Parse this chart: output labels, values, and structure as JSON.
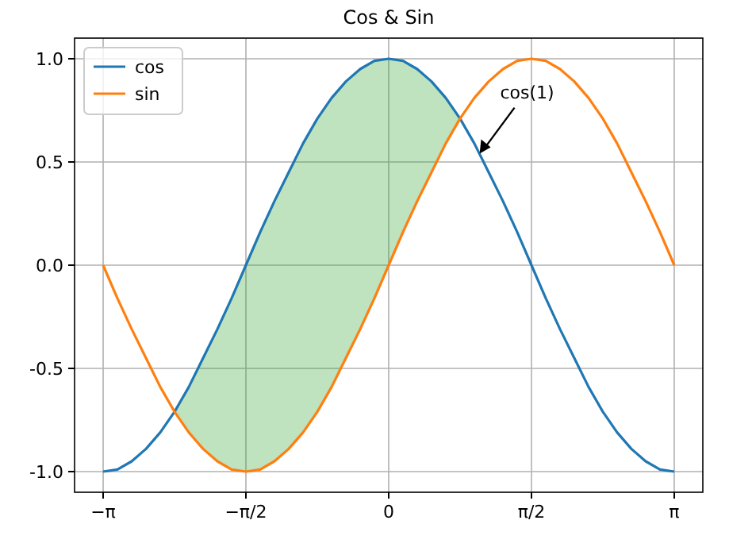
{
  "chart_data": {
    "type": "line",
    "title": "Cos & Sin",
    "x": [
      -3.142,
      -2.985,
      -2.827,
      -2.67,
      -2.513,
      -2.356,
      -2.199,
      -2.042,
      -1.885,
      -1.728,
      -1.571,
      -1.414,
      -1.257,
      -1.1,
      -0.942,
      -0.785,
      -0.628,
      -0.471,
      -0.314,
      -0.157,
      0,
      0.157,
      0.314,
      0.471,
      0.628,
      0.785,
      0.942,
      1.1,
      1.257,
      1.414,
      1.571,
      1.728,
      1.885,
      2.042,
      2.199,
      2.356,
      2.513,
      2.67,
      2.827,
      2.985,
      3.142
    ],
    "series": [
      {
        "name": "cos",
        "color": "#1f77b4",
        "values": [
          -1,
          -0.99,
          -0.95,
          -0.89,
          -0.81,
          -0.71,
          -0.59,
          -0.45,
          -0.31,
          -0.16,
          0,
          0.16,
          0.31,
          0.45,
          0.59,
          0.71,
          0.81,
          0.89,
          0.95,
          0.99,
          1,
          0.99,
          0.95,
          0.89,
          0.81,
          0.71,
          0.59,
          0.45,
          0.31,
          0.16,
          0,
          -0.16,
          -0.31,
          -0.45,
          -0.59,
          -0.71,
          -0.81,
          -0.89,
          -0.95,
          -0.99,
          -1
        ],
        "upper": [
          null,
          null,
          null,
          null,
          null,
          -0.71,
          -0.59,
          -0.45,
          -0.31,
          -0.16,
          0,
          0.16,
          0.31,
          0.45,
          0.59,
          0.71,
          0.81,
          0.89,
          0.95,
          0.99,
          1,
          0.99,
          0.95,
          0.89,
          0.81,
          0.71,
          null,
          null,
          null,
          null,
          null,
          null,
          null,
          null,
          null,
          null,
          null,
          null,
          null,
          null,
          null
        ],
        "lower": [
          null,
          null,
          null,
          null,
          null,
          -0.71,
          -0.81,
          -0.89,
          -0.95,
          -0.99,
          -1,
          -0.99,
          -0.95,
          -0.89,
          -0.81,
          -0.71,
          -0.59,
          -0.45,
          -0.31,
          -0.16,
          0,
          0.16,
          0.31,
          0.45,
          0.59,
          0.71,
          null,
          null,
          null,
          null,
          null,
          null,
          null,
          null,
          null,
          null,
          null,
          null,
          null,
          null,
          null
        ]
      },
      {
        "name": "sin",
        "color": "#ff7f0e",
        "values": [
          0,
          -0.16,
          -0.31,
          -0.45,
          -0.59,
          -0.71,
          -0.81,
          -0.89,
          -0.95,
          -0.99,
          -1,
          -0.99,
          -0.95,
          -0.89,
          -0.81,
          -0.71,
          -0.59,
          -0.45,
          -0.31,
          -0.16,
          0,
          0.16,
          0.31,
          0.45,
          0.59,
          0.71,
          0.81,
          0.89,
          0.95,
          0.99,
          1,
          0.99,
          0.95,
          0.89,
          0.81,
          0.71,
          0.59,
          0.45,
          0.31,
          0.16,
          0
        ]
      }
    ],
    "xlim": [
      -3.456,
      3.456
    ],
    "ylim": [
      -1.1,
      1.1
    ],
    "xticks": [
      {
        "value": -3.1416,
        "label": "−π"
      },
      {
        "value": -1.5708,
        "label": "−π/2"
      },
      {
        "value": 0,
        "label": "0"
      },
      {
        "value": 1.5708,
        "label": "π/2"
      },
      {
        "value": 3.1416,
        "label": "π"
      }
    ],
    "yticks": [
      {
        "value": -1,
        "label": "-1.0"
      },
      {
        "value": -0.5,
        "label": "-0.5"
      },
      {
        "value": 0,
        "label": "0.0"
      },
      {
        "value": 0.5,
        "label": "0.5"
      },
      {
        "value": 1,
        "label": "1.0"
      }
    ],
    "annotations": [
      {
        "text": "cos(1)",
        "x": 1,
        "y": 0.54
      }
    ],
    "grid": true,
    "legend": "top left",
    "marker": "none",
    "line_style": "solid"
  }
}
